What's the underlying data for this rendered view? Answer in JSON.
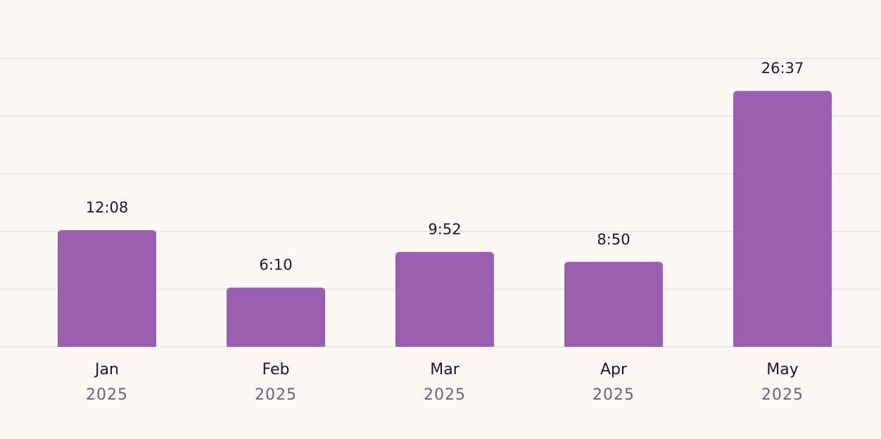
{
  "chart_data": {
    "type": "bar",
    "categories": [
      "Jan",
      "Feb",
      "Mar",
      "Apr",
      "May"
    ],
    "category_years": [
      "2025",
      "2025",
      "2025",
      "2025",
      "2025"
    ],
    "values": [
      728,
      370,
      592,
      530,
      1597
    ],
    "value_labels": [
      "12:08",
      "6:10",
      "9:52",
      "8:50",
      "26:37"
    ],
    "color": "#9b5fb0",
    "ylim": [
      0,
      1800
    ],
    "yticks": [
      0,
      360,
      720,
      1080,
      1440,
      1800
    ],
    "grid": true
  }
}
